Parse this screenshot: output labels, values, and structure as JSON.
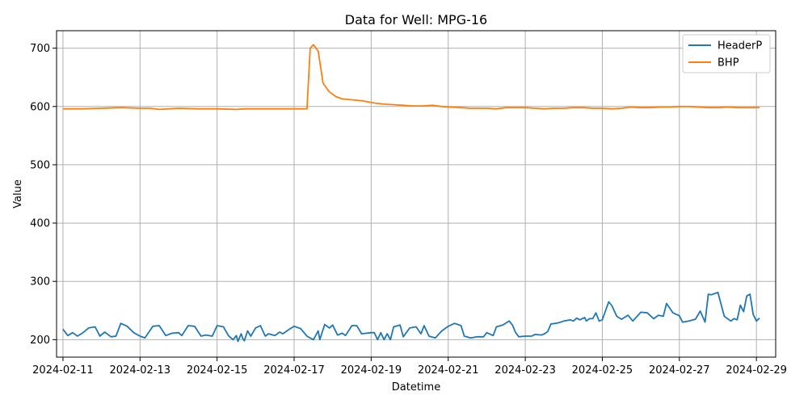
{
  "chart_data": {
    "type": "line",
    "title": "Data for Well: MPG-16",
    "xlabel": "Datetime",
    "ylabel": "Value",
    "xlim": [
      "2024-02-10T20:00",
      "2024-02-29T12:00"
    ],
    "ylim": [
      170,
      730
    ],
    "grid": true,
    "legend_position": "top-right",
    "x_ticks": [
      "2024-02-11",
      "2024-02-13",
      "2024-02-15",
      "2024-02-17",
      "2024-02-19",
      "2024-02-21",
      "2024-02-23",
      "2024-02-25",
      "2024-02-27",
      "2024-02-29"
    ],
    "y_ticks": [
      200,
      300,
      400,
      500,
      600,
      700
    ],
    "series": [
      {
        "name": "HeaderP",
        "color": "#1f77b4",
        "points": [
          [
            "2024-02-11T00:00",
            218
          ],
          [
            "2024-02-11T03:00",
            207
          ],
          [
            "2024-02-11T06:00",
            212
          ],
          [
            "2024-02-11T09:00",
            206
          ],
          [
            "2024-02-11T12:00",
            211
          ],
          [
            "2024-02-11T16:00",
            220
          ],
          [
            "2024-02-11T20:00",
            222
          ],
          [
            "2024-02-11T23:00",
            206
          ],
          [
            "2024-02-12T02:00",
            213
          ],
          [
            "2024-02-12T06:00",
            205
          ],
          [
            "2024-02-12T09:00",
            206
          ],
          [
            "2024-02-12T12:00",
            228
          ],
          [
            "2024-02-12T16:00",
            223
          ],
          [
            "2024-02-12T20:00",
            212
          ],
          [
            "2024-02-13T00:00",
            206
          ],
          [
            "2024-02-13T03:00",
            203
          ],
          [
            "2024-02-13T08:00",
            223
          ],
          [
            "2024-02-13T12:00",
            224
          ],
          [
            "2024-02-13T16:00",
            207
          ],
          [
            "2024-02-13T20:00",
            211
          ],
          [
            "2024-02-14T00:00",
            212
          ],
          [
            "2024-02-14T02:00",
            207
          ],
          [
            "2024-02-14T06:00",
            224
          ],
          [
            "2024-02-14T10:00",
            223
          ],
          [
            "2024-02-14T14:00",
            206
          ],
          [
            "2024-02-14T17:00",
            208
          ],
          [
            "2024-02-14T21:00",
            206
          ],
          [
            "2024-02-15T00:00",
            224
          ],
          [
            "2024-02-15T04:00",
            222
          ],
          [
            "2024-02-15T07:00",
            207
          ],
          [
            "2024-02-15T10:00",
            200
          ],
          [
            "2024-02-15T12:00",
            207
          ],
          [
            "2024-02-15T13:00",
            197
          ],
          [
            "2024-02-15T15:00",
            210
          ],
          [
            "2024-02-15T16:00",
            202
          ],
          [
            "2024-02-15T17:00",
            198
          ],
          [
            "2024-02-15T19:00",
            215
          ],
          [
            "2024-02-15T21:00",
            206
          ],
          [
            "2024-02-16T00:00",
            220
          ],
          [
            "2024-02-16T03:00",
            224
          ],
          [
            "2024-02-16T06:00",
            206
          ],
          [
            "2024-02-16T08:00",
            210
          ],
          [
            "2024-02-16T12:00",
            207
          ],
          [
            "2024-02-16T15:00",
            213
          ],
          [
            "2024-02-16T17:00",
            210
          ],
          [
            "2024-02-16T20:00",
            216
          ],
          [
            "2024-02-17T00:00",
            223
          ],
          [
            "2024-02-17T04:00",
            219
          ],
          [
            "2024-02-17T08:00",
            206
          ],
          [
            "2024-02-17T12:00",
            200
          ],
          [
            "2024-02-17T15:00",
            215
          ],
          [
            "2024-02-17T16:00",
            200
          ],
          [
            "2024-02-17T19:00",
            226
          ],
          [
            "2024-02-17T22:00",
            220
          ],
          [
            "2024-02-18T00:00",
            225
          ],
          [
            "2024-02-18T03:00",
            208
          ],
          [
            "2024-02-18T06:00",
            211
          ],
          [
            "2024-02-18T08:00",
            207
          ],
          [
            "2024-02-18T12:00",
            224
          ],
          [
            "2024-02-18T15:00",
            224
          ],
          [
            "2024-02-18T18:00",
            210
          ],
          [
            "2024-02-19T00:00",
            212
          ],
          [
            "2024-02-19T02:00",
            212
          ],
          [
            "2024-02-19T04:00",
            200
          ],
          [
            "2024-02-19T06:00",
            212
          ],
          [
            "2024-02-19T08:00",
            200
          ],
          [
            "2024-02-19T10:00",
            210
          ],
          [
            "2024-02-19T12:00",
            200
          ],
          [
            "2024-02-19T14:00",
            222
          ],
          [
            "2024-02-19T18:00",
            225
          ],
          [
            "2024-02-19T20:00",
            205
          ],
          [
            "2024-02-20T00:00",
            220
          ],
          [
            "2024-02-20T04:00",
            222
          ],
          [
            "2024-02-20T07:00",
            210
          ],
          [
            "2024-02-20T09:00",
            224
          ],
          [
            "2024-02-20T12:00",
            206
          ],
          [
            "2024-02-20T16:00",
            203
          ],
          [
            "2024-02-20T20:00",
            215
          ],
          [
            "2024-02-21T00:00",
            223
          ],
          [
            "2024-02-21T04:00",
            228
          ],
          [
            "2024-02-21T08:00",
            224
          ],
          [
            "2024-02-21T10:00",
            206
          ],
          [
            "2024-02-21T14:00",
            203
          ],
          [
            "2024-02-21T18:00",
            205
          ],
          [
            "2024-02-21T22:00",
            205
          ],
          [
            "2024-02-22T00:00",
            212
          ],
          [
            "2024-02-22T04:00",
            207
          ],
          [
            "2024-02-22T06:00",
            222
          ],
          [
            "2024-02-22T10:00",
            225
          ],
          [
            "2024-02-22T14:00",
            232
          ],
          [
            "2024-02-22T16:00",
            225
          ],
          [
            "2024-02-22T18:00",
            212
          ],
          [
            "2024-02-22T20:00",
            205
          ],
          [
            "2024-02-23T00:00",
            206
          ],
          [
            "2024-02-23T04:00",
            206
          ],
          [
            "2024-02-23T06:00",
            209
          ],
          [
            "2024-02-23T10:00",
            208
          ],
          [
            "2024-02-23T12:00",
            210
          ],
          [
            "2024-02-23T14:00",
            214
          ],
          [
            "2024-02-23T16:00",
            227
          ],
          [
            "2024-02-23T19:00",
            228
          ],
          [
            "2024-02-23T22:00",
            230
          ],
          [
            "2024-02-24T00:00",
            232
          ],
          [
            "2024-02-24T02:00",
            233
          ],
          [
            "2024-02-24T04:00",
            234
          ],
          [
            "2024-02-24T06:00",
            232
          ],
          [
            "2024-02-24T08:00",
            237
          ],
          [
            "2024-02-24T10:00",
            234
          ],
          [
            "2024-02-24T13:00",
            238
          ],
          [
            "2024-02-24T14:00",
            232
          ],
          [
            "2024-02-24T16:00",
            236
          ],
          [
            "2024-02-24T18:00",
            236
          ],
          [
            "2024-02-24T20:00",
            246
          ],
          [
            "2024-02-24T22:00",
            232
          ],
          [
            "2024-02-25T00:00",
            234
          ],
          [
            "2024-02-25T04:00",
            265
          ],
          [
            "2024-02-25T06:00",
            258
          ],
          [
            "2024-02-25T09:00",
            240
          ],
          [
            "2024-02-25T12:00",
            235
          ],
          [
            "2024-02-25T16:00",
            242
          ],
          [
            "2024-02-25T19:00",
            232
          ],
          [
            "2024-02-26T00:00",
            247
          ],
          [
            "2024-02-26T04:00",
            246
          ],
          [
            "2024-02-26T08:00",
            236
          ],
          [
            "2024-02-26T11:00",
            242
          ],
          [
            "2024-02-26T14:00",
            240
          ],
          [
            "2024-02-26T16:00",
            262
          ],
          [
            "2024-02-26T20:00",
            246
          ],
          [
            "2024-02-27T00:00",
            241
          ],
          [
            "2024-02-27T02:00",
            230
          ],
          [
            "2024-02-27T06:00",
            232
          ],
          [
            "2024-02-27T10:00",
            235
          ],
          [
            "2024-02-27T13:00",
            249
          ],
          [
            "2024-02-27T16:00",
            230
          ],
          [
            "2024-02-27T18:00",
            278
          ],
          [
            "2024-02-27T20:00",
            277
          ],
          [
            "2024-02-28T00:00",
            281
          ],
          [
            "2024-02-28T04:00",
            240
          ],
          [
            "2024-02-28T08:00",
            232
          ],
          [
            "2024-02-28T10:00",
            236
          ],
          [
            "2024-02-28T12:00",
            234
          ],
          [
            "2024-02-28T14:00",
            259
          ],
          [
            "2024-02-28T16:00",
            248
          ],
          [
            "2024-02-28T18:00",
            275
          ],
          [
            "2024-02-28T20:00",
            278
          ],
          [
            "2024-02-28T22:00",
            243
          ],
          [
            "2024-02-29T00:00",
            232
          ],
          [
            "2024-02-29T02:00",
            237
          ]
        ]
      },
      {
        "name": "BHP",
        "color": "#ff7f0e",
        "points": [
          [
            "2024-02-11T00:00",
            596
          ],
          [
            "2024-02-11T12:00",
            596
          ],
          [
            "2024-02-12T00:00",
            597
          ],
          [
            "2024-02-12T12:00",
            598
          ],
          [
            "2024-02-13T00:00",
            597
          ],
          [
            "2024-02-13T06:00",
            597
          ],
          [
            "2024-02-13T12:00",
            595
          ],
          [
            "2024-02-14T00:00",
            597
          ],
          [
            "2024-02-14T12:00",
            596
          ],
          [
            "2024-02-15T00:00",
            596
          ],
          [
            "2024-02-15T12:00",
            595
          ],
          [
            "2024-02-15T18:00",
            596
          ],
          [
            "2024-02-16T00:00",
            596
          ],
          [
            "2024-02-16T12:00",
            596
          ],
          [
            "2024-02-17T00:00",
            596
          ],
          [
            "2024-02-17T08:00",
            596
          ],
          [
            "2024-02-17T10:00",
            700
          ],
          [
            "2024-02-17T12:00",
            706
          ],
          [
            "2024-02-17T15:00",
            695
          ],
          [
            "2024-02-17T18:00",
            640
          ],
          [
            "2024-02-17T22:00",
            625
          ],
          [
            "2024-02-18T02:00",
            617
          ],
          [
            "2024-02-18T06:00",
            613
          ],
          [
            "2024-02-18T10:00",
            612
          ],
          [
            "2024-02-18T14:00",
            611
          ],
          [
            "2024-02-18T18:00",
            610
          ],
          [
            "2024-02-18T22:00",
            608
          ],
          [
            "2024-02-19T02:00",
            606
          ],
          [
            "2024-02-19T08:00",
            604
          ],
          [
            "2024-02-19T14:00",
            603
          ],
          [
            "2024-02-19T20:00",
            602
          ],
          [
            "2024-02-20T02:00",
            601
          ],
          [
            "2024-02-20T08:00",
            601
          ],
          [
            "2024-02-20T14:00",
            602
          ],
          [
            "2024-02-20T20:00",
            600
          ],
          [
            "2024-02-21T02:00",
            599
          ],
          [
            "2024-02-21T08:00",
            598
          ],
          [
            "2024-02-21T14:00",
            597
          ],
          [
            "2024-02-21T20:00",
            597
          ],
          [
            "2024-02-22T00:00",
            597
          ],
          [
            "2024-02-22T06:00",
            596
          ],
          [
            "2024-02-22T12:00",
            598
          ],
          [
            "2024-02-22T18:00",
            598
          ],
          [
            "2024-02-23T00:00",
            598
          ],
          [
            "2024-02-23T06:00",
            597
          ],
          [
            "2024-02-23T12:00",
            596
          ],
          [
            "2024-02-23T18:00",
            597
          ],
          [
            "2024-02-24T00:00",
            597
          ],
          [
            "2024-02-24T06:00",
            598
          ],
          [
            "2024-02-24T12:00",
            598
          ],
          [
            "2024-02-24T18:00",
            597
          ],
          [
            "2024-02-25T00:00",
            597
          ],
          [
            "2024-02-25T06:00",
            596
          ],
          [
            "2024-02-25T12:00",
            597
          ],
          [
            "2024-02-25T18:00",
            599
          ],
          [
            "2024-02-26T00:00",
            598
          ],
          [
            "2024-02-26T06:00",
            598
          ],
          [
            "2024-02-26T12:00",
            599
          ],
          [
            "2024-02-26T18:00",
            599
          ],
          [
            "2024-02-27T00:00",
            600
          ],
          [
            "2024-02-27T06:00",
            600
          ],
          [
            "2024-02-27T12:00",
            599
          ],
          [
            "2024-02-27T18:00",
            598
          ],
          [
            "2024-02-28T00:00",
            598
          ],
          [
            "2024-02-28T06:00",
            599
          ],
          [
            "2024-02-28T12:00",
            598
          ],
          [
            "2024-02-28T18:00",
            598
          ],
          [
            "2024-02-29T00:00",
            598
          ],
          [
            "2024-02-29T02:00",
            598
          ]
        ]
      }
    ]
  }
}
